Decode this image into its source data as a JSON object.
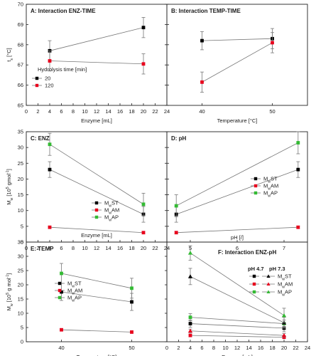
{
  "chart_data": [
    {
      "id": "A",
      "type": "scatter",
      "title": "A: Interaction ENZ-TIME",
      "xlabel": "Enzyme [mL]",
      "ylabel": "t_s [°C]",
      "xlim": [
        0,
        24
      ],
      "ylim": [
        65,
        70
      ],
      "xticks": [
        0,
        2,
        4,
        6,
        8,
        10,
        12,
        14,
        16,
        18,
        20,
        22,
        24
      ],
      "yticks": [
        65,
        66,
        67,
        68,
        69,
        70
      ],
      "legend_title": "Hydrolysis time [min]",
      "legend_position": "bottom-left",
      "series": [
        {
          "name": "20",
          "color": "#000000",
          "marker": "square",
          "x": [
            4,
            20
          ],
          "y": [
            67.7,
            68.85
          ],
          "err": [
            0.5,
            0.5
          ]
        },
        {
          "name": "120",
          "color": "#e8001c",
          "marker": "square",
          "x": [
            4,
            20
          ],
          "y": [
            67.2,
            67.05
          ],
          "err": [
            0.5,
            0.5
          ]
        }
      ]
    },
    {
      "id": "B",
      "type": "scatter",
      "title": "B: Interaction TEMP-TIME",
      "xlabel": "Temperature [°C]",
      "ylabel": "",
      "xlim": [
        35,
        55
      ],
      "ylim": [
        65,
        70
      ],
      "xticks": [
        40,
        50
      ],
      "yticks": [
        65,
        66,
        67,
        68,
        69,
        70
      ],
      "series": [
        {
          "name": "20",
          "color": "#000000",
          "marker": "square",
          "x": [
            40,
            50
          ],
          "y": [
            68.2,
            68.3
          ],
          "err": [
            0.45,
            0.5
          ]
        },
        {
          "name": "120",
          "color": "#e8001c",
          "marker": "square",
          "x": [
            40,
            50
          ],
          "y": [
            66.15,
            68.1
          ],
          "err": [
            0.5,
            0.5
          ]
        }
      ]
    },
    {
      "id": "C",
      "type": "scatter",
      "title": "C: ENZ",
      "xlabel": "Enzyme [mL]",
      "ylabel": "M_w [10^5 gmol^-1]",
      "xlim": [
        0,
        24
      ],
      "ylim": [
        0,
        35
      ],
      "xticks": [
        0,
        2,
        4,
        6,
        8,
        10,
        12,
        14,
        16,
        18,
        20,
        22,
        24
      ],
      "yticks": [
        0,
        5,
        10,
        15,
        20,
        25,
        30,
        35
      ],
      "legend_position": "right",
      "series": [
        {
          "name": "M_wST",
          "color": "#000000",
          "marker": "square",
          "x": [
            4,
            20
          ],
          "y": [
            23,
            8.8
          ],
          "err": [
            2.5,
            2.5
          ]
        },
        {
          "name": "M_wAM",
          "color": "#e8001c",
          "marker": "square",
          "x": [
            4,
            20
          ],
          "y": [
            4.7,
            3
          ],
          "err": [
            0.4,
            0.4
          ]
        },
        {
          "name": "M_wAP",
          "color": "#33bb33",
          "marker": "square",
          "x": [
            4,
            20
          ],
          "y": [
            31,
            12
          ],
          "err": [
            3.5,
            3.5
          ]
        }
      ]
    },
    {
      "id": "D",
      "type": "scatter",
      "title": "D: pH",
      "xlabel": "pH [/]",
      "ylabel": "",
      "xlim": [
        4.5,
        7.5
      ],
      "ylim": [
        0,
        35
      ],
      "xticks": [
        5,
        6,
        7
      ],
      "yticks": [
        0,
        5,
        10,
        15,
        20,
        25,
        30,
        35
      ],
      "legend_position": "right",
      "series": [
        {
          "name": "M_wST",
          "color": "#000000",
          "marker": "square",
          "x": [
            4.7,
            7.3
          ],
          "y": [
            8.8,
            23
          ],
          "err": [
            2.5,
            2.5
          ]
        },
        {
          "name": "M_wAM",
          "color": "#e8001c",
          "marker": "square",
          "x": [
            4.7,
            7.3
          ],
          "y": [
            3,
            4.7
          ],
          "err": [
            0.4,
            0.4
          ]
        },
        {
          "name": "M_wAP",
          "color": "#33bb33",
          "marker": "square",
          "x": [
            4.7,
            7.3
          ],
          "y": [
            11.5,
            31.5
          ],
          "err": [
            3.5,
            3.5
          ]
        }
      ]
    },
    {
      "id": "E",
      "type": "scatter",
      "title": "E: TEMP",
      "xlabel": "Temperature [°C]",
      "ylabel": "M_w [10^5 g mol^-1]",
      "xlim": [
        35,
        55
      ],
      "ylim": [
        0,
        35
      ],
      "xticks": [
        40,
        50
      ],
      "yticks": [
        0,
        5,
        10,
        15,
        20,
        25,
        30,
        35
      ],
      "legend_position": "center",
      "series": [
        {
          "name": "M_wST",
          "color": "#000000",
          "marker": "square",
          "x": [
            40,
            50
          ],
          "y": [
            17.5,
            14
          ],
          "err": [
            3,
            3
          ]
        },
        {
          "name": "M_wAM",
          "color": "#e8001c",
          "marker": "square",
          "x": [
            40,
            50
          ],
          "y": [
            4.2,
            3.4
          ],
          "err": [
            0.4,
            0.4
          ]
        },
        {
          "name": "M_wAP",
          "color": "#33bb33",
          "marker": "square",
          "x": [
            40,
            50
          ],
          "y": [
            24,
            18.8
          ],
          "err": [
            3.5,
            3.5
          ]
        }
      ]
    },
    {
      "id": "F",
      "type": "scatter",
      "title": "F: Interaction ENZ-pH",
      "xlabel": "Enzyme [mL]",
      "ylabel": "",
      "xlim": [
        0,
        24
      ],
      "ylim": [
        0,
        55
      ],
      "xticks": [
        0,
        2,
        4,
        6,
        8,
        10,
        12,
        14,
        16,
        18,
        20,
        22,
        24
      ],
      "yticks": [],
      "legend_position": "right",
      "legend_columns": [
        "pH 4.7",
        "pH 7.3"
      ],
      "series": [
        {
          "name": "M_wST",
          "group": "pH 4.7",
          "color": "#000000",
          "marker": "square",
          "x": [
            4,
            20
          ],
          "y": [
            10,
            7.5
          ],
          "err": [
            2,
            2
          ]
        },
        {
          "name": "M_wAM",
          "group": "pH 4.7",
          "color": "#e8001c",
          "marker": "square",
          "x": [
            4,
            20
          ],
          "y": [
            3.5,
            2.5
          ],
          "err": [
            0.8,
            0.8
          ]
        },
        {
          "name": "M_wAP",
          "group": "pH 4.7",
          "color": "#33bb33",
          "marker": "square",
          "x": [
            4,
            20
          ],
          "y": [
            13.5,
            10
          ],
          "err": [
            2,
            2
          ]
        },
        {
          "name": "M_wST",
          "group": "pH 7.3",
          "color": "#000000",
          "marker": "triangle",
          "x": [
            4,
            20
          ],
          "y": [
            36,
            10.5
          ],
          "err": [
            4.5,
            3
          ]
        },
        {
          "name": "M_wAM",
          "group": "pH 7.3",
          "color": "#e8001c",
          "marker": "triangle",
          "x": [
            4,
            20
          ],
          "y": [
            6,
            3.5
          ],
          "err": [
            1,
            1
          ]
        },
        {
          "name": "M_wAP",
          "group": "pH 7.3",
          "color": "#33bb33",
          "marker": "triangle",
          "x": [
            4,
            20
          ],
          "y": [
            49,
            14.5
          ],
          "err": [
            4,
            4
          ]
        }
      ]
    }
  ]
}
